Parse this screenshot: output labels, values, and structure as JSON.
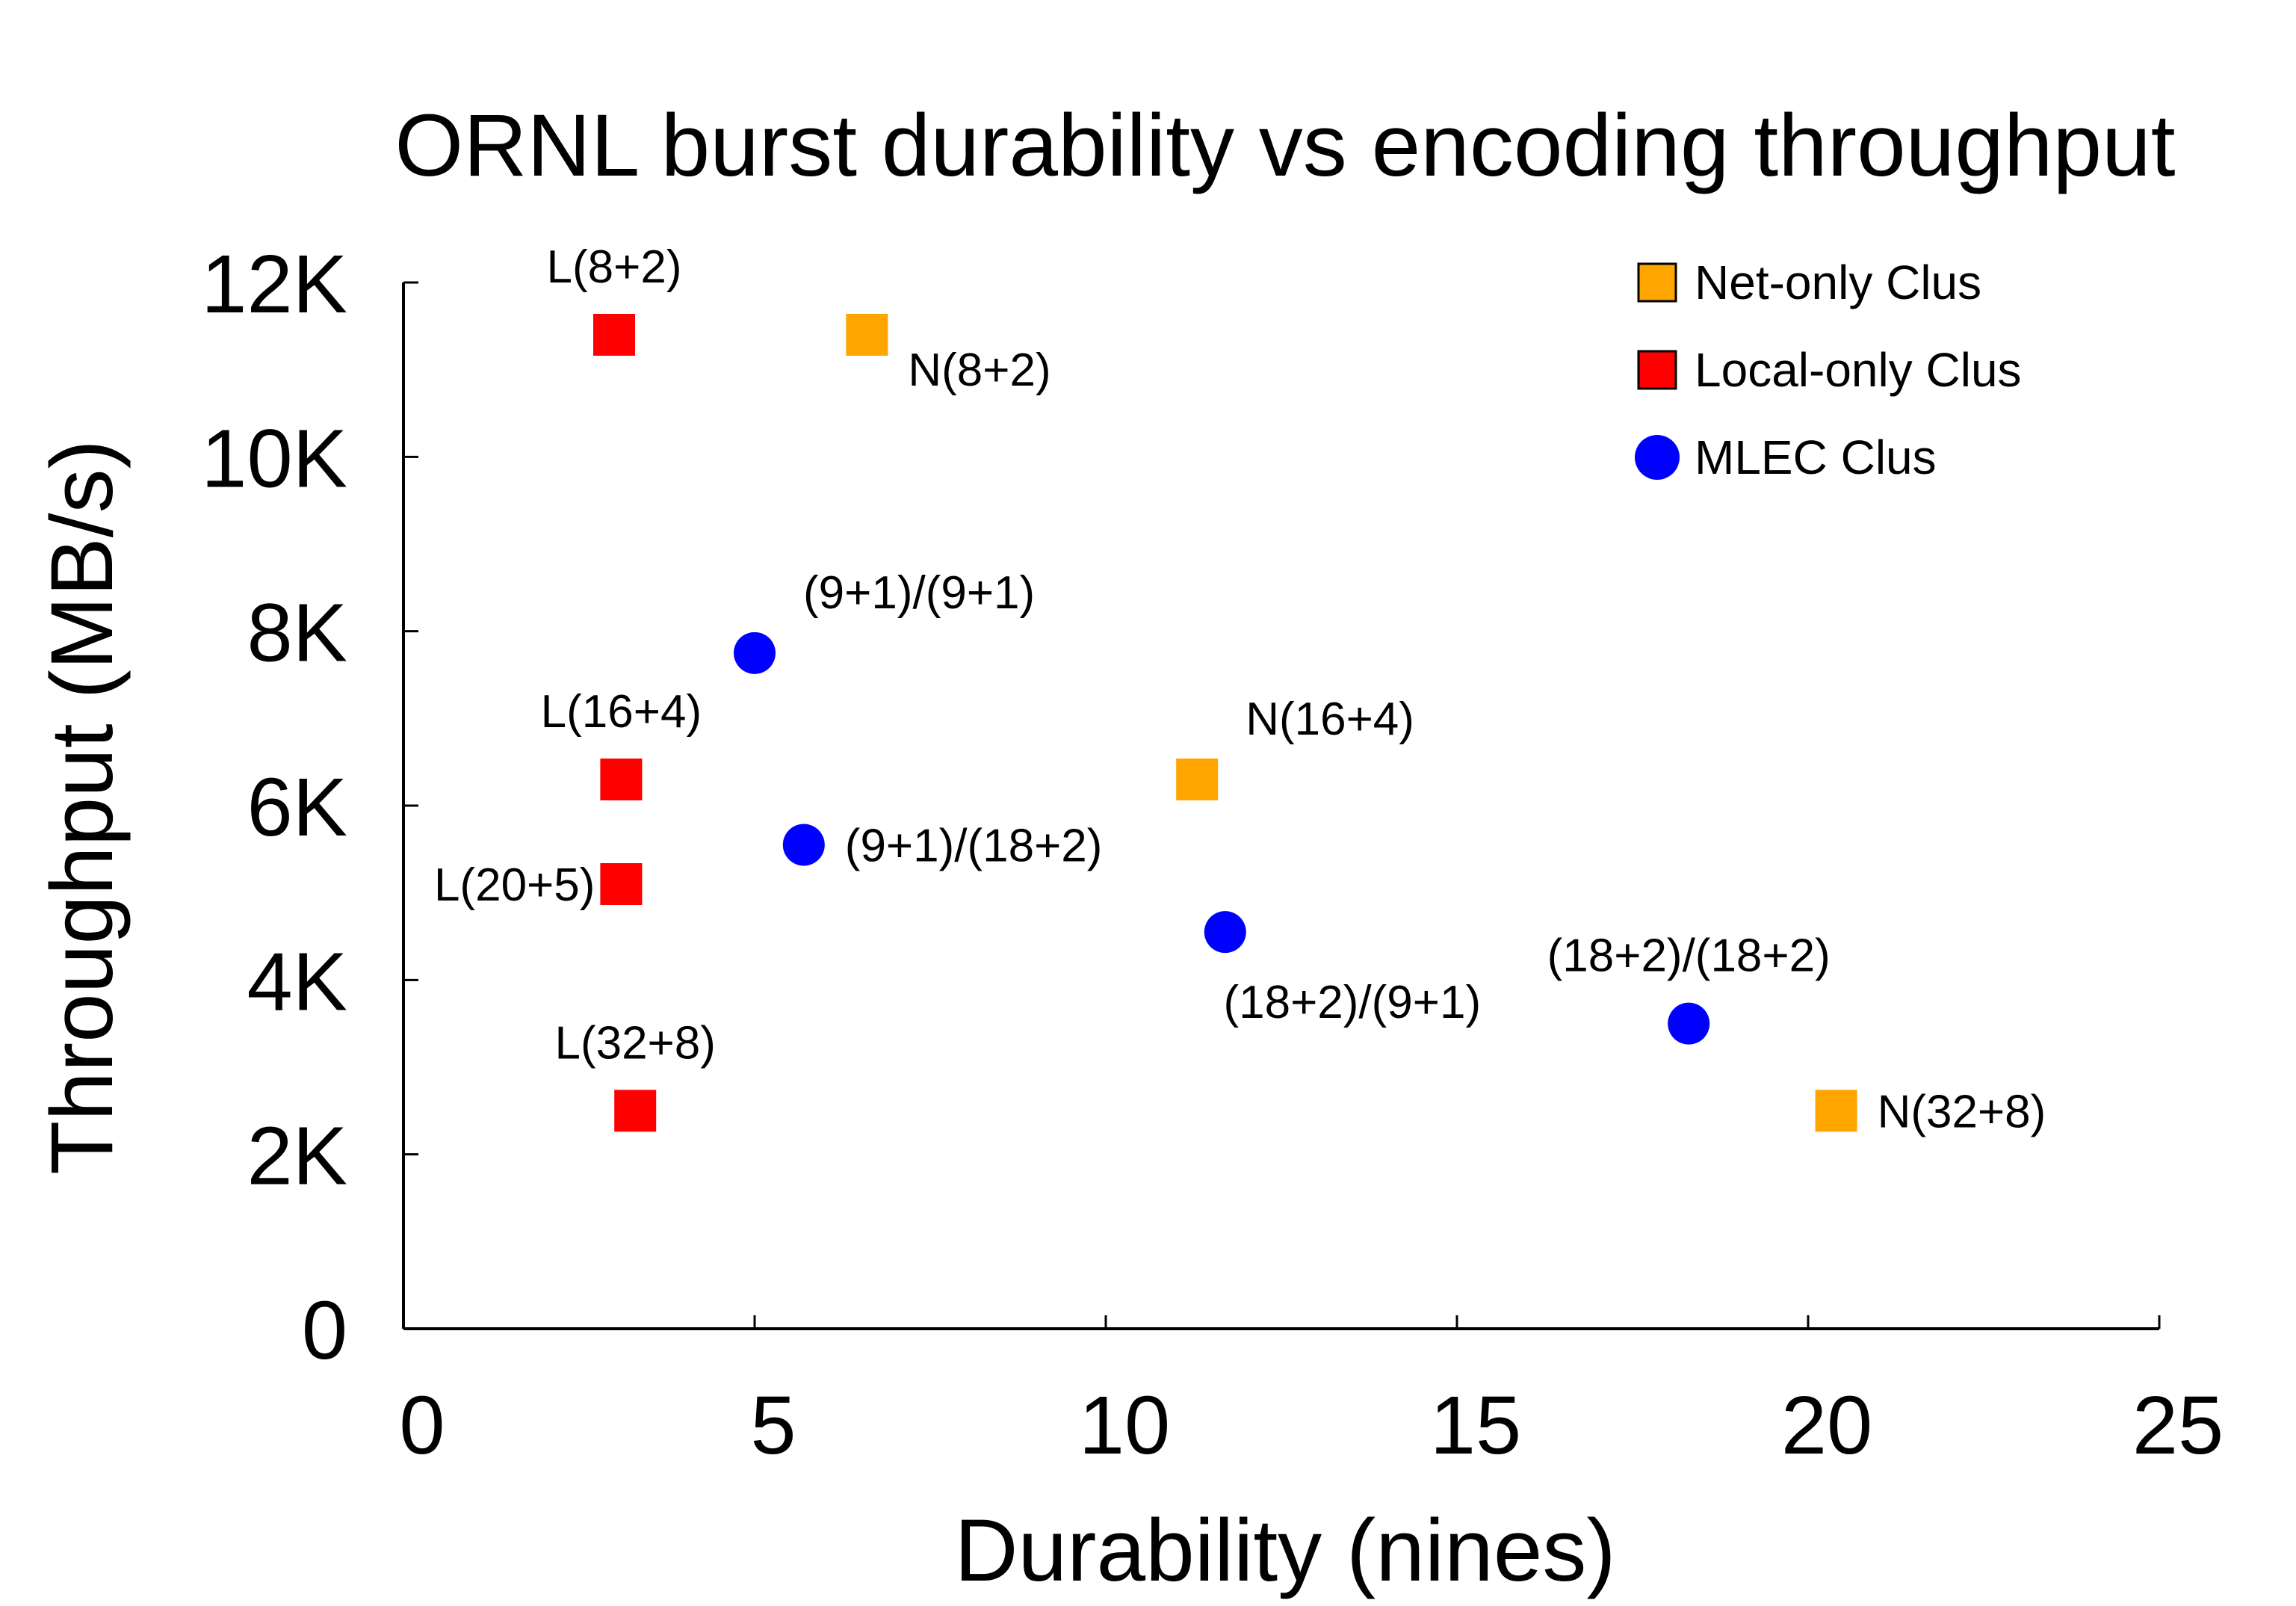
{
  "chart_data": {
    "type": "scatter",
    "title": "ORNL burst durability vs encoding throughput",
    "xlabel": "Durability (nines)",
    "ylabel": "Throughput (MB/s)",
    "xlim": [
      0,
      25
    ],
    "ylim": [
      0,
      12000
    ],
    "x_ticks": [
      {
        "value": 0,
        "label": "0"
      },
      {
        "value": 5,
        "label": "5"
      },
      {
        "value": 10,
        "label": "10"
      },
      {
        "value": 15,
        "label": "15"
      },
      {
        "value": 20,
        "label": "20"
      },
      {
        "value": 25,
        "label": "25"
      }
    ],
    "y_ticks": [
      {
        "value": 0,
        "label": "0"
      },
      {
        "value": 2000,
        "label": "2K"
      },
      {
        "value": 4000,
        "label": "4K"
      },
      {
        "value": 6000,
        "label": "6K"
      },
      {
        "value": 8000,
        "label": "8K"
      },
      {
        "value": 10000,
        "label": "10K"
      },
      {
        "value": 12000,
        "label": "12K"
      }
    ],
    "grid": false,
    "legend_position": "top-right",
    "series": [
      {
        "name": "Net-only Clus",
        "marker": "square",
        "color": "#FFA500",
        "points": [
          {
            "x": 6.6,
            "y": 11400,
            "label": "N(8+2)",
            "label_pos": "below-right"
          },
          {
            "x": 11.3,
            "y": 6300,
            "label": "N(16+4)",
            "label_pos": "above-right"
          },
          {
            "x": 20.4,
            "y": 2500,
            "label": "N(32+8)",
            "label_pos": "right"
          }
        ]
      },
      {
        "name": "Local-only Clus",
        "marker": "square",
        "color": "#FF0000",
        "points": [
          {
            "x": 3.0,
            "y": 11400,
            "label": "L(8+2)",
            "label_pos": "above"
          },
          {
            "x": 3.1,
            "y": 6300,
            "label": "L(16+4)",
            "label_pos": "above"
          },
          {
            "x": 3.1,
            "y": 5100,
            "label": "L(20+5)",
            "label_pos": "left"
          },
          {
            "x": 3.3,
            "y": 2500,
            "label": "L(32+8)",
            "label_pos": "above"
          }
        ]
      },
      {
        "name": "MLEC Clus",
        "marker": "circle",
        "color": "#0000FF",
        "points": [
          {
            "x": 5.0,
            "y": 7750,
            "label": "(9+1)/(9+1)",
            "label_pos": "above-right"
          },
          {
            "x": 5.7,
            "y": 5550,
            "label": "(9+1)/(18+2)",
            "label_pos": "right"
          },
          {
            "x": 11.7,
            "y": 4550,
            "label": "(18+2)/(9+1)",
            "label_pos": "below"
          },
          {
            "x": 18.3,
            "y": 3500,
            "label": "(18+2)/(18+2)",
            "label_pos": "above"
          }
        ]
      }
    ]
  }
}
